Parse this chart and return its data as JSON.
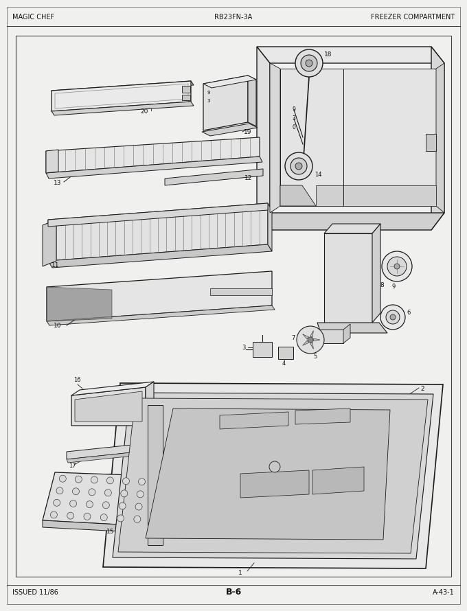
{
  "title_left": "MAGIC CHEF",
  "title_center": "RB23FN-3A",
  "title_right": "FREEZER COMPARTMENT",
  "footer_left": "ISSUED 11/86",
  "footer_center": "B-6",
  "footer_right": "A-43-1",
  "bg_color": "#f0f0ee",
  "line_color": "#1a1a1a",
  "text_color": "#111111",
  "fig_width": 6.8,
  "fig_height": 8.9,
  "dpi": 100
}
